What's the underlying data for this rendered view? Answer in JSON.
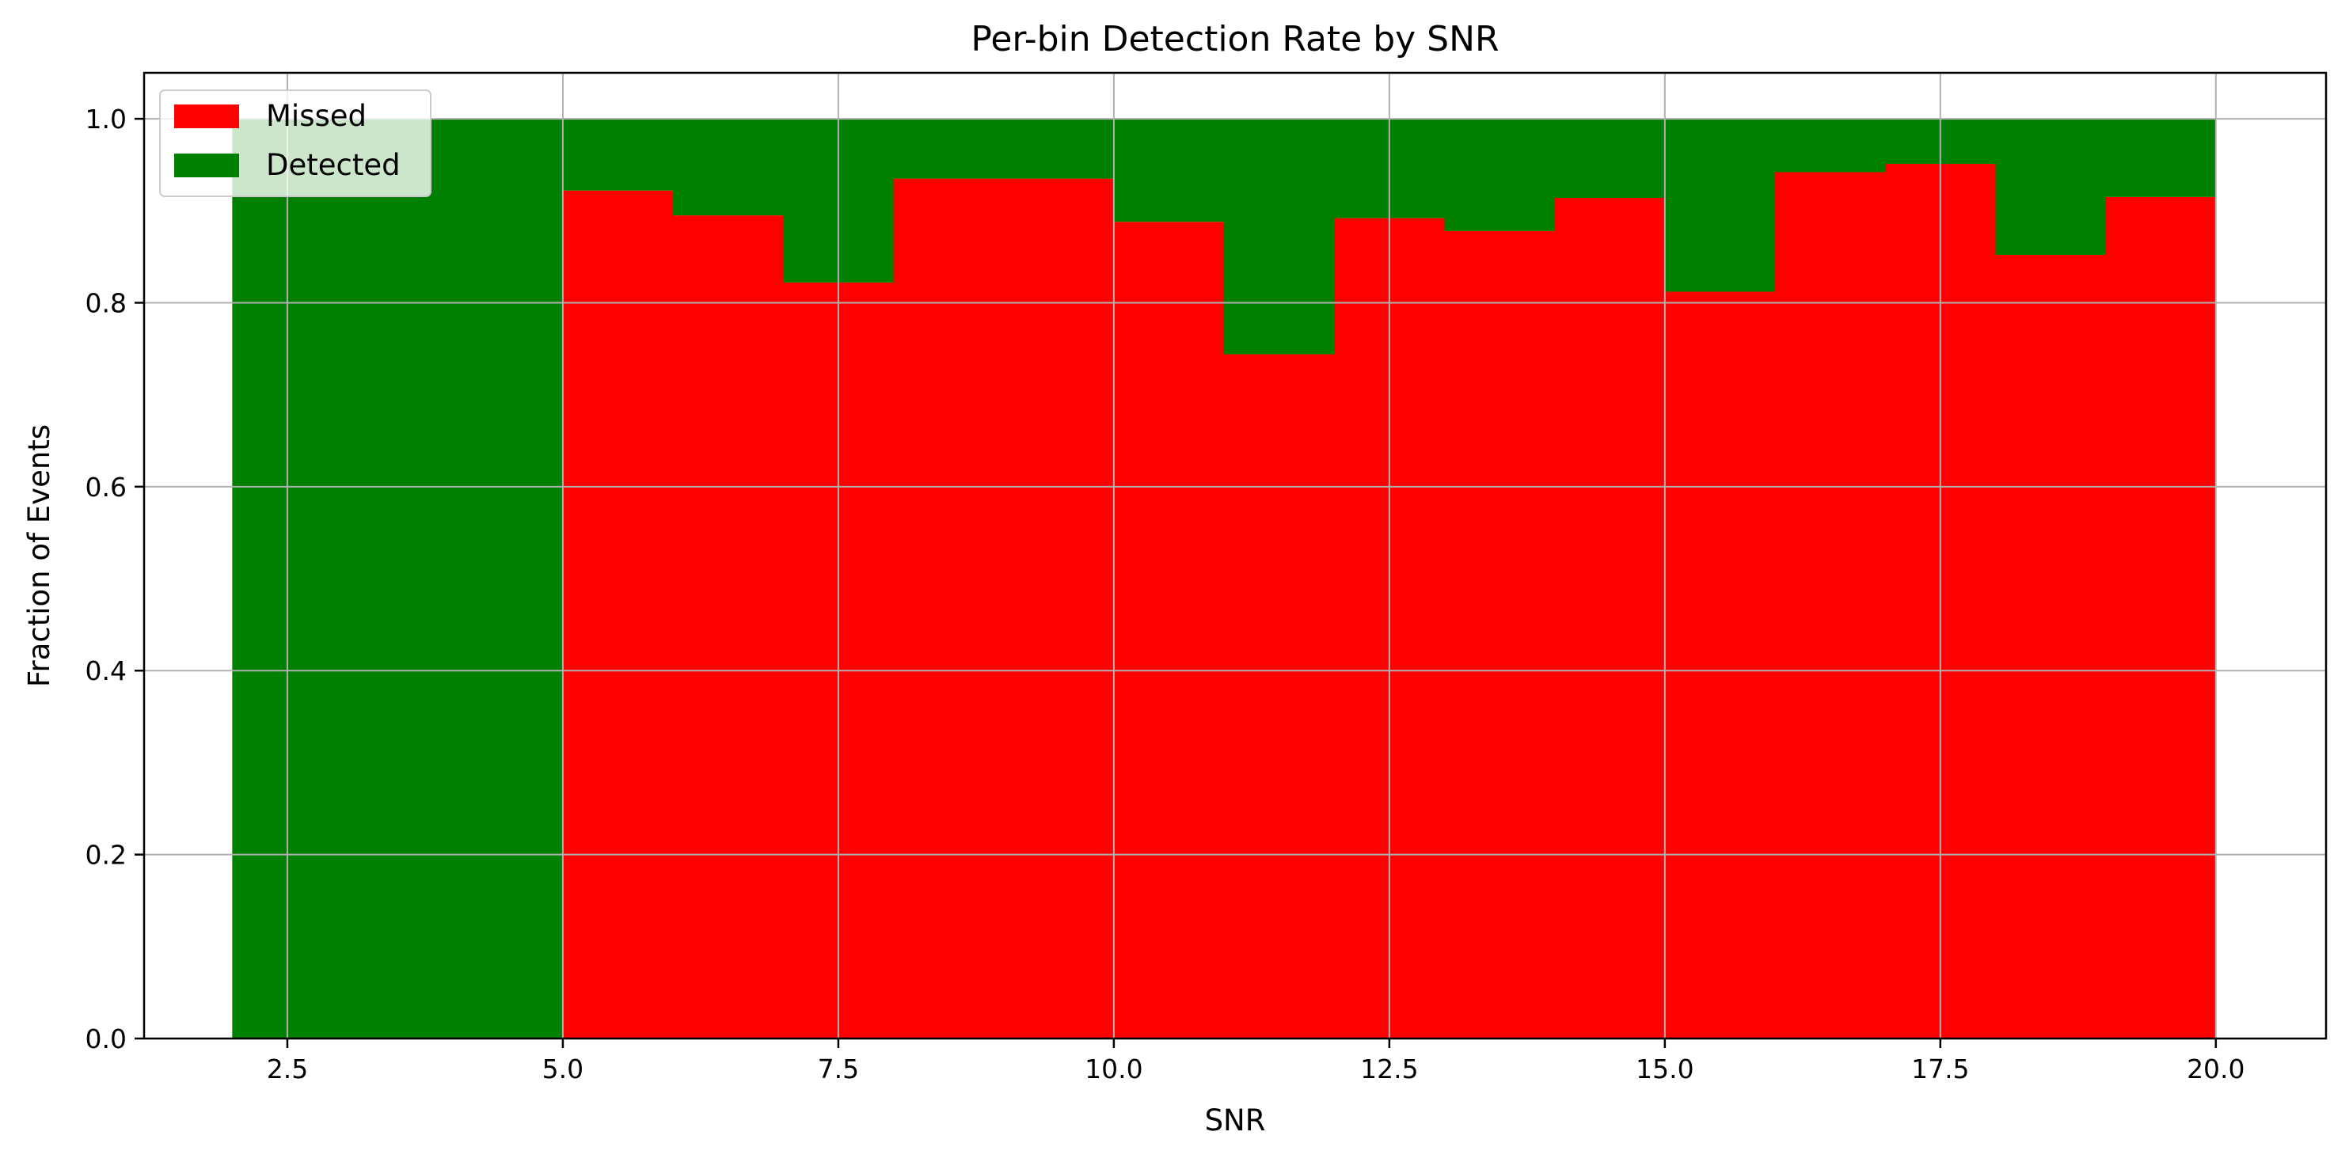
{
  "chart_data": {
    "type": "bar",
    "title": "Per-bin Detection Rate by SNR",
    "xlabel": "SNR",
    "ylabel": "Fraction of Events",
    "xlim": [
      1.2,
      21.0
    ],
    "ylim": [
      0.0,
      1.05
    ],
    "xticks": [
      2.5,
      5.0,
      7.5,
      10.0,
      12.5,
      15.0,
      17.5,
      20.0
    ],
    "xtick_labels": [
      "2.5",
      "5.0",
      "7.5",
      "10.0",
      "12.5",
      "15.0",
      "17.5",
      "20.0"
    ],
    "yticks": [
      0.0,
      0.2,
      0.4,
      0.6,
      0.8,
      1.0
    ],
    "ytick_labels": [
      "0.0",
      "0.2",
      "0.4",
      "0.6",
      "0.8",
      "1.0"
    ],
    "grid": true,
    "legend_position": "upper-left",
    "colors": {
      "Missed": "#ff0000",
      "Detected": "#008000"
    },
    "bins": [
      {
        "x0": 2,
        "x1": 5,
        "missed": 0.0,
        "detected": 1.0
      },
      {
        "x0": 5,
        "x1": 6,
        "missed": 0.922,
        "detected": 0.078
      },
      {
        "x0": 6,
        "x1": 7,
        "missed": 0.895,
        "detected": 0.105
      },
      {
        "x0": 7,
        "x1": 8,
        "missed": 0.822,
        "detected": 0.178
      },
      {
        "x0": 8,
        "x1": 9,
        "missed": 0.935,
        "detected": 0.065
      },
      {
        "x0": 9,
        "x1": 10,
        "missed": 0.935,
        "detected": 0.065
      },
      {
        "x0": 10,
        "x1": 11,
        "missed": 0.888,
        "detected": 0.112
      },
      {
        "x0": 11,
        "x1": 12,
        "missed": 0.744,
        "detected": 0.256
      },
      {
        "x0": 12,
        "x1": 13,
        "missed": 0.892,
        "detected": 0.108
      },
      {
        "x0": 13,
        "x1": 14,
        "missed": 0.878,
        "detected": 0.122
      },
      {
        "x0": 14,
        "x1": 15,
        "missed": 0.914,
        "detected": 0.086
      },
      {
        "x0": 15,
        "x1": 16,
        "missed": 0.812,
        "detected": 0.188
      },
      {
        "x0": 16,
        "x1": 17,
        "missed": 0.942,
        "detected": 0.058
      },
      {
        "x0": 17,
        "x1": 18,
        "missed": 0.951,
        "detected": 0.049
      },
      {
        "x0": 18,
        "x1": 19,
        "missed": 0.852,
        "detected": 0.148
      },
      {
        "x0": 19,
        "x1": 20,
        "missed": 0.915,
        "detected": 0.085
      }
    ],
    "legend": [
      "Missed",
      "Detected"
    ]
  }
}
